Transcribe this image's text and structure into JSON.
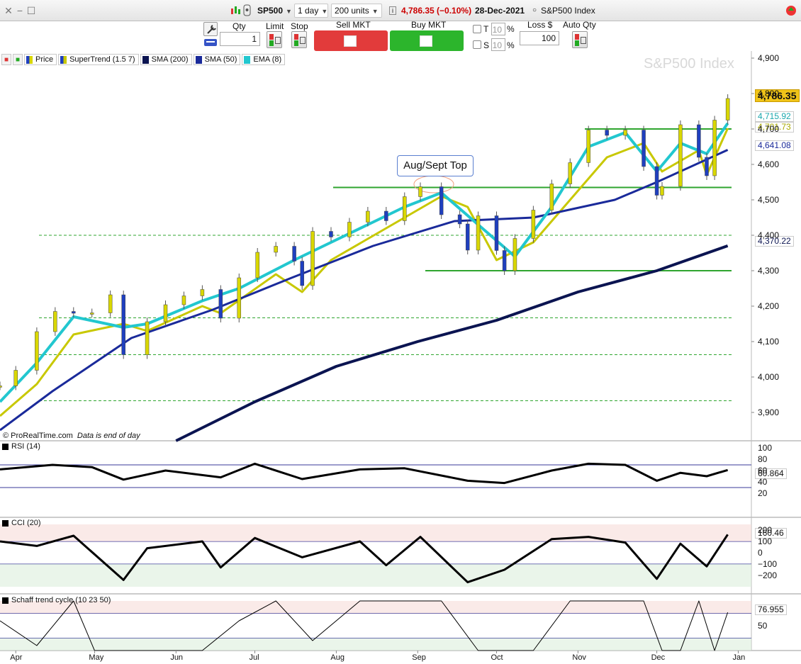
{
  "toolbar": {
    "symbol": "SP500",
    "timeframe": "1 day",
    "units": "200 units",
    "last_quote": "4,786.35 (−0.10%)",
    "quote_date": "28-Dec-2021",
    "instrument_name": "S&P500 Index"
  },
  "order_bar": {
    "qty_label": "Qty",
    "qty_value": "1",
    "limit_label": "Limit",
    "stop_label": "Stop",
    "sell_label": "Sell MKT",
    "buy_label": "Buy MKT",
    "t_label": "T",
    "s_label": "S",
    "t_value": "10",
    "s_value": "10",
    "pct": "%",
    "loss_label": "Loss $",
    "loss_value": "100",
    "auto_qty_label": "Auto Qty"
  },
  "colors": {
    "up": "#d9d700",
    "down": "#1f3fbf",
    "supertrend": "#c8c800",
    "sma200": "#0b1451",
    "sma50": "#1a2a9a",
    "ema8": "#22c7cf",
    "green_line": "#2fa52f",
    "sell": "#e23b3b",
    "buy": "#2cb52c",
    "last_price_bg": "#f0c419"
  },
  "legend": [
    {
      "label": "Price",
      "color": "#1f3fbf"
    },
    {
      "label": "SuperTrend (1.5 7)",
      "color": "#c8c800"
    },
    {
      "label": "SMA (200)",
      "color": "#0b1451"
    },
    {
      "label": "SMA (50)",
      "color": "#1a2a9a"
    },
    {
      "label": "EMA (8)",
      "color": "#22c7cf"
    }
  ],
  "watermark": "S&P500 Index",
  "copyright": "© ProRealTime.com",
  "copyright_note": "Data is end of day",
  "annotation": "Aug/Sept Top",
  "panels": {
    "rsi": {
      "label": "RSI (14)",
      "last": "60.864"
    },
    "cci": {
      "label": "CCI (20)",
      "last": "160.46"
    },
    "stc": {
      "label": "Schaff trend cycle (10 23 50)",
      "last": "76.955"
    }
  },
  "price_labels": {
    "last": "4,786.35",
    "ema": "4,715.92",
    "supertrend": "4,701.73",
    "sma50": "4,641.08",
    "sma200": "4,370.22"
  },
  "chart_data": [
    {
      "type": "line",
      "title": "S&P500 Index",
      "x_axis_labels": [
        "Apr",
        "May",
        "Jun",
        "Jul",
        "Aug",
        "Sep",
        "Oct",
        "Nov",
        "Dec",
        "Jan"
      ],
      "ylim": [
        3820,
        4920
      ],
      "y_ticks": [
        "4,900",
        "4,800",
        "4,700",
        "4,600",
        "4,500",
        "4,400",
        "4,300",
        "4,200",
        "4,100",
        "4,000",
        "3,900"
      ],
      "series": [
        {
          "name": "Price",
          "x": [
            "Mar 26",
            "Apr 1",
            "Apr 9",
            "Apr 16",
            "Apr 23",
            "Apr 30",
            "May 7",
            "May 12",
            "May 21",
            "May 28",
            "Jun 4",
            "Jun 11",
            "Jun 18",
            "Jun 25",
            "Jul 2",
            "Jul 9",
            "Jul 16",
            "Jul 19",
            "Jul 23",
            "Jul 30",
            "Aug 6",
            "Aug 13",
            "Aug 20",
            "Aug 27",
            "Sep 2",
            "Sep 10",
            "Sep 17",
            "Sep 20",
            "Sep 24",
            "Oct 1",
            "Oct 4",
            "Oct 8",
            "Oct 15",
            "Oct 22",
            "Oct 29",
            "Nov 5",
            "Nov 12",
            "Nov 19",
            "Nov 26",
            "Dec 1",
            "Dec 3",
            "Dec 10",
            "Dec 17",
            "Dec 20",
            "Dec 23",
            "Dec 28"
          ],
          "values": [
            3975,
            4019,
            4128,
            4185,
            4180,
            4181,
            4232,
            4063,
            4156,
            4204,
            4229,
            4247,
            4166,
            4280,
            4352,
            4369,
            4327,
            4258,
            4411,
            4395,
            4437,
            4468,
            4441,
            4509,
            4537,
            4458,
            4432,
            4358,
            4455,
            4357,
            4300,
            4391,
            4471,
            4545,
            4605,
            4697,
            4682,
            4697,
            4594,
            4513,
            4538,
            4712,
            4620,
            4568,
            4725,
            4786
          ]
        },
        {
          "name": "SuperTrend (1.5 7)",
          "x": [
            "Mar 26",
            "Apr 9",
            "Apr 23",
            "May 12",
            "May 21",
            "Jun 11",
            "Jun 18",
            "Jul 9",
            "Jul 19",
            "Jul 30",
            "Aug 13",
            "Aug 27",
            "Sep 10",
            "Sep 20",
            "Oct 1",
            "Oct 15",
            "Oct 29",
            "Nov 12",
            "Nov 26",
            "Dec 3",
            "Dec 17",
            "Dec 20",
            "Dec 28"
          ],
          "values": [
            3890,
            3980,
            4120,
            4150,
            4130,
            4200,
            4180,
            4290,
            4240,
            4330,
            4390,
            4450,
            4510,
            4480,
            4330,
            4380,
            4500,
            4620,
            4660,
            4580,
            4640,
            4570,
            4701.73
          ]
        },
        {
          "name": "SMA (200)",
          "x": [
            "Jun 1",
            "Jul 1",
            "Aug 1",
            "Sep 1",
            "Oct 1",
            "Nov 1",
            "Dec 1",
            "Dec 28"
          ],
          "values": [
            3820,
            3930,
            4030,
            4100,
            4160,
            4240,
            4300,
            4370.22
          ]
        },
        {
          "name": "SMA (50)",
          "x": [
            "Mar 26",
            "Apr 15",
            "May 15",
            "Jun 15",
            "Jul 15",
            "Aug 15",
            "Sep 15",
            "Oct 15",
            "Nov 15",
            "Dec 1",
            "Dec 28"
          ],
          "values": [
            3850,
            3960,
            4110,
            4190,
            4280,
            4370,
            4440,
            4450,
            4500,
            4550,
            4641.08
          ]
        },
        {
          "name": "EMA (8)",
          "x": [
            "Mar 26",
            "Apr 9",
            "Apr 23",
            "May 12",
            "May 21",
            "Jun 11",
            "Jun 25",
            "Jul 16",
            "Jul 30",
            "Aug 13",
            "Aug 27",
            "Sep 10",
            "Sep 24",
            "Oct 8",
            "Oct 22",
            "Nov 5",
            "Nov 19",
            "Dec 1",
            "Dec 10",
            "Dec 20",
            "Dec 28"
          ],
          "values": [
            3930,
            4040,
            4170,
            4140,
            4150,
            4215,
            4250,
            4330,
            4380,
            4430,
            4480,
            4520,
            4430,
            4340,
            4480,
            4650,
            4690,
            4580,
            4660,
            4630,
            4715.92
          ]
        }
      ],
      "horizontal_levels": [
        {
          "value": 4700,
          "style": "solid",
          "color": "#2fa52f"
        },
        {
          "value": 4535,
          "style": "solid",
          "color": "#2fa52f"
        },
        {
          "value": 4400,
          "style": "dashed",
          "color": "#2fa52f"
        },
        {
          "value": 4300,
          "style": "solid",
          "color": "#2fa52f"
        },
        {
          "value": 4167,
          "style": "dashed",
          "color": "#2fa52f"
        },
        {
          "value": 4063,
          "style": "dashed",
          "color": "#2fa52f"
        },
        {
          "value": 3933,
          "style": "dashed",
          "color": "#2fa52f"
        }
      ]
    },
    {
      "type": "line",
      "title": "RSI (14)",
      "ylim": [
        0,
        100
      ],
      "y_ticks": [
        "100",
        "80",
        "60",
        "40",
        "20"
      ],
      "reference_lines": [
        70,
        30
      ],
      "series": [
        {
          "name": "RSI (14)",
          "x": [
            "Mar 26",
            "Apr 15",
            "Apr 30",
            "May 12",
            "May 28",
            "Jun 18",
            "Jul 1",
            "Jul 19",
            "Aug 10",
            "Aug 27",
            "Sep 20",
            "Oct 4",
            "Oct 22",
            "Nov 5",
            "Nov 19",
            "Dec 1",
            "Dec 10",
            "Dec 20",
            "Dec 28"
          ],
          "values": [
            62,
            70,
            66,
            44,
            60,
            48,
            72,
            45,
            62,
            64,
            42,
            38,
            60,
            72,
            70,
            42,
            56,
            50,
            60.864
          ]
        }
      ]
    },
    {
      "type": "line",
      "title": "CCI (20)",
      "ylim": [
        -300,
        250
      ],
      "y_ticks": [
        "200",
        "100",
        "0",
        "−100",
        "−200"
      ],
      "reference_lines": [
        100,
        -100
      ],
      "series": [
        {
          "name": "CCI (20)",
          "x": [
            "Mar 26",
            "Apr 9",
            "Apr 23",
            "May 12",
            "May 21",
            "Jun 11",
            "Jun 18",
            "Jul 1",
            "Jul 19",
            "Aug 10",
            "Aug 20",
            "Sep 2",
            "Sep 20",
            "Oct 4",
            "Oct 22",
            "Nov 5",
            "Nov 19",
            "Dec 1",
            "Dec 10",
            "Dec 20",
            "Dec 28"
          ],
          "values": [
            100,
            60,
            150,
            -240,
            40,
            100,
            -130,
            130,
            -40,
            100,
            -110,
            140,
            -260,
            -150,
            120,
            140,
            90,
            -230,
            80,
            -120,
            160.46
          ]
        }
      ]
    },
    {
      "type": "line",
      "title": "Schaff trend cycle (10 23 50)",
      "ylim": [
        0,
        100
      ],
      "y_ticks": [
        "50"
      ],
      "reference_lines": [
        75,
        25
      ],
      "series": [
        {
          "name": "Schaff trend cycle (10 23 50)",
          "x": [
            "Mar 26",
            "Apr 9",
            "Apr 23",
            "May 1",
            "May 12",
            "May 21",
            "Jun 11",
            "Jun 25",
            "Jul 9",
            "Jul 23",
            "Aug 10",
            "Aug 27",
            "Sep 10",
            "Sep 24",
            "Oct 15",
            "Oct 29",
            "Nov 19",
            "Nov 26",
            "Dec 3",
            "Dec 10",
            "Dec 17",
            "Dec 23",
            "Dec 28"
          ],
          "values": [
            60,
            10,
            100,
            0,
            0,
            0,
            0,
            60,
            100,
            20,
            100,
            100,
            100,
            0,
            0,
            100,
            100,
            100,
            0,
            0,
            100,
            0,
            76.955
          ]
        }
      ]
    }
  ]
}
